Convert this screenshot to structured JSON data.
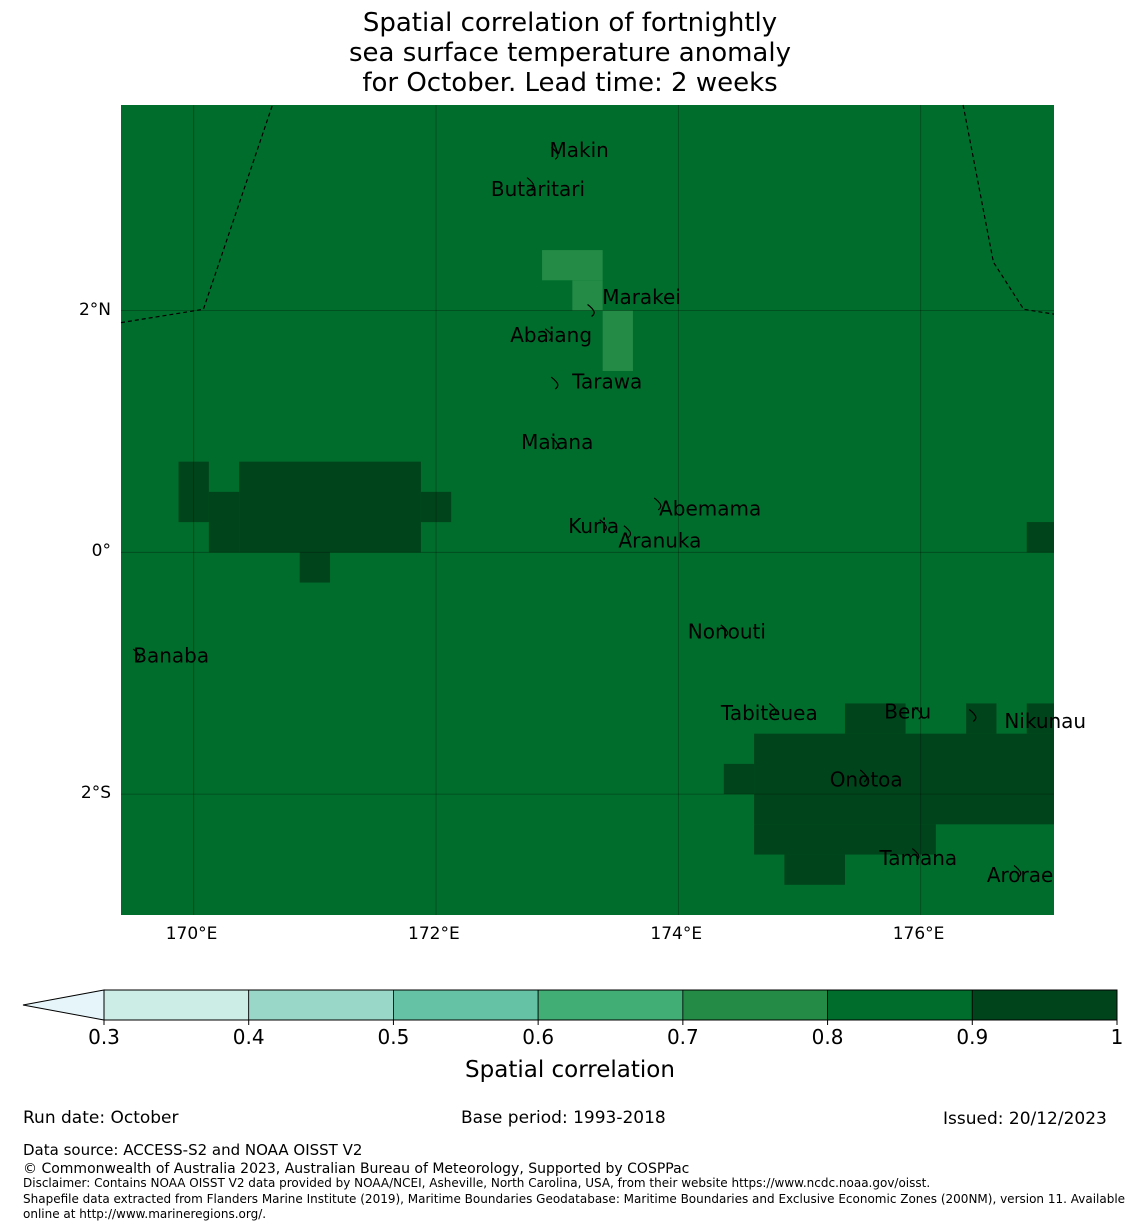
{
  "title": {
    "line1": "Spatial correlation of fortnightly",
    "line2": "sea surface temperature anomaly",
    "line3": "for October. Lead time: 2 weeks"
  },
  "colors": {
    "c_lt_0_3": "#e5f5f9",
    "c_0_3_0_4": "#ccece6",
    "c_0_4_0_5": "#99d8c9",
    "c_0_5_0_6": "#66c2a4",
    "c_0_6_0_7": "#41ae76",
    "c_0_7_0_8": "#238b45",
    "c_0_8_0_9": "#006d2c",
    "c_0_9_1": "#00441b"
  },
  "map": {
    "lon_range": [
      169.4,
      177.1
    ],
    "lat_range": [
      -3.0,
      3.7
    ],
    "background_class": "0.8-0.9",
    "x_ticks": [
      {
        "lon": 170,
        "label": "170°E"
      },
      {
        "lon": 172,
        "label": "172°E"
      },
      {
        "lon": 174,
        "label": "174°E"
      },
      {
        "lon": 176,
        "label": "176°E"
      }
    ],
    "y_ticks": [
      {
        "lat": 2,
        "label": "2°N"
      },
      {
        "lat": 0,
        "label": "0°"
      },
      {
        "lat": -2,
        "label": "2°S"
      }
    ],
    "cells": [
      {
        "lon0": 172.875,
        "lat0": 2.25,
        "lon1": 173.375,
        "lat1": 2.5,
        "class": "0.7-0.8"
      },
      {
        "lon0": 173.125,
        "lat0": 2.0,
        "lon1": 173.375,
        "lat1": 2.25,
        "class": "0.7-0.8"
      },
      {
        "lon0": 173.375,
        "lat0": 1.5,
        "lon1": 173.625,
        "lat1": 2.0,
        "class": "0.7-0.8"
      },
      {
        "lon0": 169.875,
        "lat0": 0.25,
        "lon1": 170.125,
        "lat1": 0.75,
        "class": "0.9-1"
      },
      {
        "lon0": 170.125,
        "lat0": 0.0,
        "lon1": 170.375,
        "lat1": 0.5,
        "class": "0.9-1"
      },
      {
        "lon0": 170.375,
        "lat0": 0.0,
        "lon1": 171.875,
        "lat1": 0.75,
        "class": "0.9-1"
      },
      {
        "lon0": 171.875,
        "lat0": 0.25,
        "lon1": 172.125,
        "lat1": 0.5,
        "class": "0.9-1"
      },
      {
        "lon0": 170.875,
        "lat0": -0.25,
        "lon1": 171.125,
        "lat1": 0.0,
        "class": "0.9-1"
      },
      {
        "lon0": 176.875,
        "lat0": 0.0,
        "lon1": 177.1,
        "lat1": 0.25,
        "class": "0.9-1"
      },
      {
        "lon0": 175.375,
        "lat0": -1.5,
        "lon1": 175.875,
        "lat1": -1.25,
        "class": "0.9-1"
      },
      {
        "lon0": 176.375,
        "lat0": -1.5,
        "lon1": 176.625,
        "lat1": -1.25,
        "class": "0.9-1"
      },
      {
        "lon0": 176.875,
        "lat0": -1.5,
        "lon1": 177.1,
        "lat1": -1.25,
        "class": "0.9-1"
      },
      {
        "lon0": 174.625,
        "lat0": -2.0,
        "lon1": 177.1,
        "lat1": -1.5,
        "class": "0.9-1"
      },
      {
        "lon0": 174.375,
        "lat0": -2.0,
        "lon1": 174.625,
        "lat1": -1.75,
        "class": "0.9-1"
      },
      {
        "lon0": 174.625,
        "lat0": -2.25,
        "lon1": 177.1,
        "lat1": -2.0,
        "class": "0.9-1"
      },
      {
        "lon0": 174.625,
        "lat0": -2.5,
        "lon1": 176.125,
        "lat1": -2.25,
        "class": "0.9-1"
      },
      {
        "lon0": 174.875,
        "lat0": -2.75,
        "lon1": 175.375,
        "lat1": -2.5,
        "class": "0.9-1"
      }
    ],
    "eez_boundaries": [
      [
        [
          169.4,
          1.9
        ],
        [
          170.08,
          2.01
        ],
        [
          170.65,
          3.7
        ]
      ],
      [
        [
          176.35,
          3.7
        ],
        [
          176.6,
          2.4
        ],
        [
          176.85,
          2.01
        ],
        [
          177.1,
          1.97
        ]
      ]
    ],
    "islands": [
      {
        "name": "Makin",
        "lon": 173.0,
        "lat": 3.3
      },
      {
        "name": "Butaritari",
        "lon": 172.8,
        "lat": 3.05
      },
      {
        "name": "Marakei",
        "lon": 173.3,
        "lat": 2.0
      },
      {
        "name": "Abaiang",
        "lon": 172.95,
        "lat": 1.8
      },
      {
        "name": "Tarawa",
        "lon": 173.0,
        "lat": 1.4
      },
      {
        "name": "Maiana",
        "lon": 173.0,
        "lat": 0.9
      },
      {
        "name": "Abemama",
        "lon": 173.85,
        "lat": 0.4
      },
      {
        "name": "Kuria",
        "lon": 173.4,
        "lat": 0.22
      },
      {
        "name": "Aranuka",
        "lon": 173.6,
        "lat": 0.17
      },
      {
        "name": "Nonouti",
        "lon": 174.4,
        "lat": -0.65
      },
      {
        "name": "Banaba",
        "lon": 169.55,
        "lat": -0.85
      },
      {
        "name": "Tabiteuea",
        "lon": 174.8,
        "lat": -1.3
      },
      {
        "name": "Beru",
        "lon": 176.0,
        "lat": -1.33
      },
      {
        "name": "Nikunau",
        "lon": 176.45,
        "lat": -1.35
      },
      {
        "name": "Onotoa",
        "lon": 175.55,
        "lat": -1.85
      },
      {
        "name": "Tamana",
        "lon": 175.98,
        "lat": -2.5
      },
      {
        "name": "Arorae",
        "lon": 176.82,
        "lat": -2.64
      }
    ]
  },
  "colorbar": {
    "label": "Spatial correlation",
    "bounds": [
      0.3,
      0.4,
      0.5,
      0.6,
      0.7,
      0.8,
      0.9,
      1.0
    ],
    "tick_labels": [
      "0.3",
      "0.4",
      "0.5",
      "0.6",
      "0.7",
      "0.8",
      "0.9",
      "1"
    ],
    "under_class": "<0.3"
  },
  "footer": {
    "run_date": "Run date: October",
    "base_period": "Base period: 1993-2018",
    "issued": "Issued: 20/12/2023",
    "data_source": "Data source: ACCESS-S2 and NOAA OISST V2",
    "copyright": "© Commonwealth of Australia 2023, Australian Bureau of Meteorology, Supported by COSPPac",
    "disclaimer": "Disclaimer: Contains NOAA OISST V2 data provided by NOAA/NCEI, Asheville, North Carolina, USA, from their website https://www.ncdc.noaa.gov/oisst.",
    "shapefile_line1": "Shapefile data extracted from Flanders Marine Institute (2019), Maritime Boundaries Geodatabase: Maritime Boundaries and Exclusive Economic Zones (200NM), version 11. Available",
    "shapefile_line2": "online at http://www.marineregions.org/."
  }
}
